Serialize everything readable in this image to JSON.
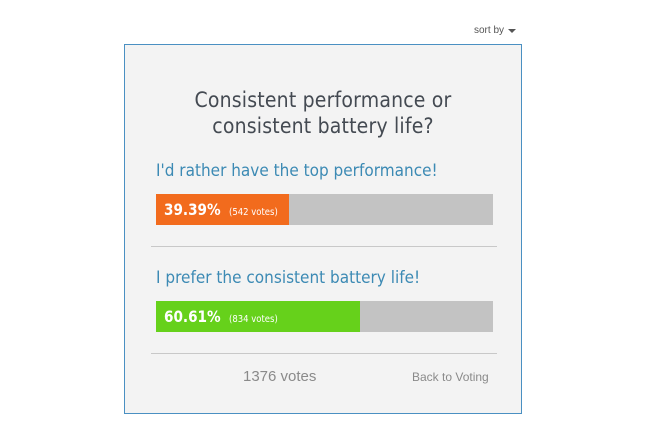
{
  "header": {
    "sort_label": "sort by",
    "sort_icon": "caret-down"
  },
  "poll": {
    "question": "Consistent performance or consistent battery life?",
    "options": [
      {
        "label": "I'd rather have the top performance!",
        "percent_text": "39.39%",
        "votes_text": "(542 votes)",
        "percent": 39.39,
        "color": "#f26b1d"
      },
      {
        "label": "I prefer the consistent battery life!",
        "percent_text": "60.61%",
        "votes_text": "(834 votes)",
        "percent": 60.61,
        "color": "#66d11b"
      }
    ],
    "total_votes_text": "1376 votes",
    "back_link": "Back to Voting"
  },
  "colors": {
    "border": "#4a90c2",
    "label": "#3c8ab4",
    "bar_track": "#c3c3c3"
  }
}
